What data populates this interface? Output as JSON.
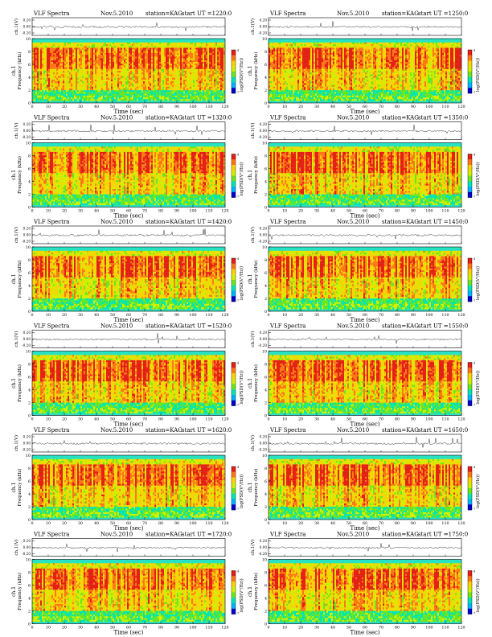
{
  "labels": {
    "series_channel": "ch.1",
    "waveform_axis": "ch.1(V)",
    "frequency_axis": "Frequency (kHz)",
    "time_axis": "Time (sec)",
    "colorbar_label": "log(PSD(V²/Hz))"
  },
  "colors": {
    "spectrogram": [
      "#0000cc",
      "#00b4ff",
      "#00e6b4",
      "#6ee61e",
      "#d2f000",
      "#ffd200",
      "#ff7814",
      "#e61e14"
    ],
    "background_band": "#27e3c3",
    "trace": "#222222"
  },
  "chart_data": [
    {
      "type": "heatmap",
      "title_left": "VLF Spectra",
      "date": "Nov.5.2010",
      "station": "station=KAG",
      "start": "start UT =1220:0",
      "x": {
        "min": 0,
        "max": 120,
        "ticks": [
          0,
          10,
          20,
          30,
          40,
          50,
          60,
          70,
          80,
          90,
          100,
          110,
          120
        ]
      },
      "y": {
        "min": 0,
        "max": 10,
        "ticks": [
          0,
          2,
          4,
          6,
          8,
          10
        ]
      },
      "waveform_ticks": [
        "0.20",
        "0.00",
        "-0.20"
      ],
      "colorbar_ticks": [
        "-7",
        "-4"
      ]
    },
    {
      "type": "heatmap",
      "title_left": "VLF Spectra",
      "date": "Nov.5.2010",
      "station": "station=KAG",
      "start": "start UT =1250:0",
      "x": {
        "min": 0,
        "max": 120,
        "ticks": [
          0,
          10,
          20,
          30,
          40,
          50,
          60,
          70,
          80,
          90,
          100,
          110,
          120
        ]
      },
      "y": {
        "min": 0,
        "max": 10,
        "ticks": [
          0,
          2,
          4,
          6,
          8,
          10
        ]
      },
      "waveform_ticks": [
        "0.20",
        "0.00",
        "-0.20"
      ],
      "colorbar_ticks": [
        "-7",
        "-4"
      ]
    },
    {
      "type": "heatmap",
      "title_left": "VLF Spectra",
      "date": "Nov.5.2010",
      "station": "station=KAG",
      "start": "start UT =1320:0",
      "x": {
        "min": 0,
        "max": 120,
        "ticks": [
          0,
          10,
          20,
          30,
          40,
          50,
          60,
          70,
          80,
          90,
          100,
          110,
          120
        ]
      },
      "y": {
        "min": 0,
        "max": 10,
        "ticks": [
          0,
          2,
          4,
          6,
          8,
          10
        ]
      },
      "waveform_ticks": [
        "0.20",
        "0.00",
        "-0.20"
      ],
      "colorbar_ticks": [
        "-7",
        "-4"
      ]
    },
    {
      "type": "heatmap",
      "title_left": "VLF Spectra",
      "date": "Nov.5.2010",
      "station": "station=KAG",
      "start": "start UT =1350:0",
      "x": {
        "min": 0,
        "max": 120,
        "ticks": [
          0,
          10,
          20,
          30,
          40,
          50,
          60,
          70,
          80,
          90,
          100,
          110,
          120
        ]
      },
      "y": {
        "min": 0,
        "max": 10,
        "ticks": [
          0,
          2,
          4,
          6,
          8,
          10
        ]
      },
      "waveform_ticks": [
        "0.20",
        "0.00",
        "-0.20"
      ],
      "colorbar_ticks": [
        "-7",
        "-4"
      ]
    },
    {
      "type": "heatmap",
      "title_left": "VLF Spectra",
      "date": "Nov.5.2010",
      "station": "station=KAG",
      "start": "start UT =1420:0",
      "x": {
        "min": 0,
        "max": 120,
        "ticks": [
          0,
          10,
          20,
          30,
          40,
          50,
          60,
          70,
          80,
          90,
          100,
          110,
          120
        ]
      },
      "y": {
        "min": 0,
        "max": 10,
        "ticks": [
          0,
          2,
          4,
          6,
          8,
          10
        ]
      },
      "waveform_ticks": [
        "0.20",
        "0.00",
        "-0.20"
      ],
      "colorbar_ticks": [
        "-7",
        "-4"
      ]
    },
    {
      "type": "heatmap",
      "title_left": "VLF Spectra",
      "date": "Nov.5.2010",
      "station": "station=KAG",
      "start": "start UT =1450:0",
      "x": {
        "min": 0,
        "max": 120,
        "ticks": [
          0,
          10,
          20,
          30,
          40,
          50,
          60,
          70,
          80,
          90,
          100,
          110,
          120
        ]
      },
      "y": {
        "min": 0,
        "max": 10,
        "ticks": [
          0,
          2,
          4,
          6,
          8,
          10
        ]
      },
      "waveform_ticks": [
        "0.20",
        "0.00",
        "-0.20"
      ],
      "colorbar_ticks": [
        "-7",
        "-4"
      ]
    },
    {
      "type": "heatmap",
      "title_left": "VLF Spectra",
      "date": "Nov.5.2010",
      "station": "station=KAG",
      "start": "start UT =1520:0",
      "x": {
        "min": 0,
        "max": 120,
        "ticks": [
          0,
          10,
          20,
          30,
          40,
          50,
          60,
          70,
          80,
          90,
          100,
          110,
          120
        ]
      },
      "y": {
        "min": 0,
        "max": 10,
        "ticks": [
          0,
          2,
          4,
          6,
          8,
          10
        ]
      },
      "waveform_ticks": [
        "0.20",
        "0.00",
        "-0.20"
      ],
      "colorbar_ticks": [
        "-7",
        "-4"
      ]
    },
    {
      "type": "heatmap",
      "title_left": "VLF Spectra",
      "date": "Nov.5.2010",
      "station": "station=KAG",
      "start": "start UT =1550:0",
      "x": {
        "min": 0,
        "max": 120,
        "ticks": [
          0,
          10,
          20,
          30,
          40,
          50,
          60,
          70,
          80,
          90,
          100,
          110,
          120
        ]
      },
      "y": {
        "min": 0,
        "max": 10,
        "ticks": [
          0,
          2,
          4,
          6,
          8,
          10
        ]
      },
      "waveform_ticks": [
        "0.20",
        "0.00",
        "-0.20"
      ],
      "colorbar_ticks": [
        "-7",
        "-4"
      ]
    },
    {
      "type": "heatmap",
      "title_left": "VLF Spectra",
      "date": "Nov.5.2010",
      "station": "station=KAG",
      "start": "start UT =1620:0",
      "x": {
        "min": 0,
        "max": 120,
        "ticks": [
          0,
          10,
          20,
          30,
          40,
          50,
          60,
          70,
          80,
          90,
          100,
          110,
          120
        ]
      },
      "y": {
        "min": 0,
        "max": 10,
        "ticks": [
          0,
          2,
          4,
          6,
          8,
          10
        ]
      },
      "waveform_ticks": [
        "0.20",
        "0.00",
        "-0.20"
      ],
      "colorbar_ticks": [
        "-7",
        "-4"
      ]
    },
    {
      "type": "heatmap",
      "title_left": "VLF Spectra",
      "date": "Nov.5.2010",
      "station": "station=KAG",
      "start": "start UT =1650:0",
      "x": {
        "min": 0,
        "max": 120,
        "ticks": [
          0,
          10,
          20,
          30,
          40,
          50,
          60,
          70,
          80,
          90,
          100,
          110,
          120
        ]
      },
      "y": {
        "min": 0,
        "max": 10,
        "ticks": [
          0,
          2,
          4,
          6,
          8,
          10
        ]
      },
      "waveform_ticks": [
        "0.20",
        "0.00",
        "-0.20"
      ],
      "colorbar_ticks": [
        "-7",
        "-4"
      ]
    },
    {
      "type": "heatmap",
      "title_left": "VLF Spectra",
      "date": "Nov.5.2010",
      "station": "station=KAG",
      "start": "start UT =1720:0",
      "x": {
        "min": 0,
        "max": 120,
        "ticks": [
          0,
          10,
          20,
          30,
          40,
          50,
          60,
          70,
          80,
          90,
          100,
          110,
          120
        ]
      },
      "y": {
        "min": 0,
        "max": 10,
        "ticks": [
          0,
          2,
          4,
          6,
          8,
          10
        ]
      },
      "waveform_ticks": [
        "0.20",
        "0.00",
        "-0.20"
      ],
      "colorbar_ticks": [
        "-7",
        "-4"
      ]
    },
    {
      "type": "heatmap",
      "title_left": "VLF Spectra",
      "date": "Nov.5.2010",
      "station": "station=KAG",
      "start": "start UT =1750:0",
      "x": {
        "min": 0,
        "max": 120,
        "ticks": [
          0,
          10,
          20,
          30,
          40,
          50,
          60,
          70,
          80,
          90,
          100,
          110,
          120
        ]
      },
      "y": {
        "min": 0,
        "max": 10,
        "ticks": [
          0,
          2,
          4,
          6,
          8,
          10
        ]
      },
      "waveform_ticks": [
        "0.20",
        "0.00",
        "-0.20"
      ],
      "colorbar_ticks": [
        "-7",
        "-4"
      ]
    }
  ]
}
